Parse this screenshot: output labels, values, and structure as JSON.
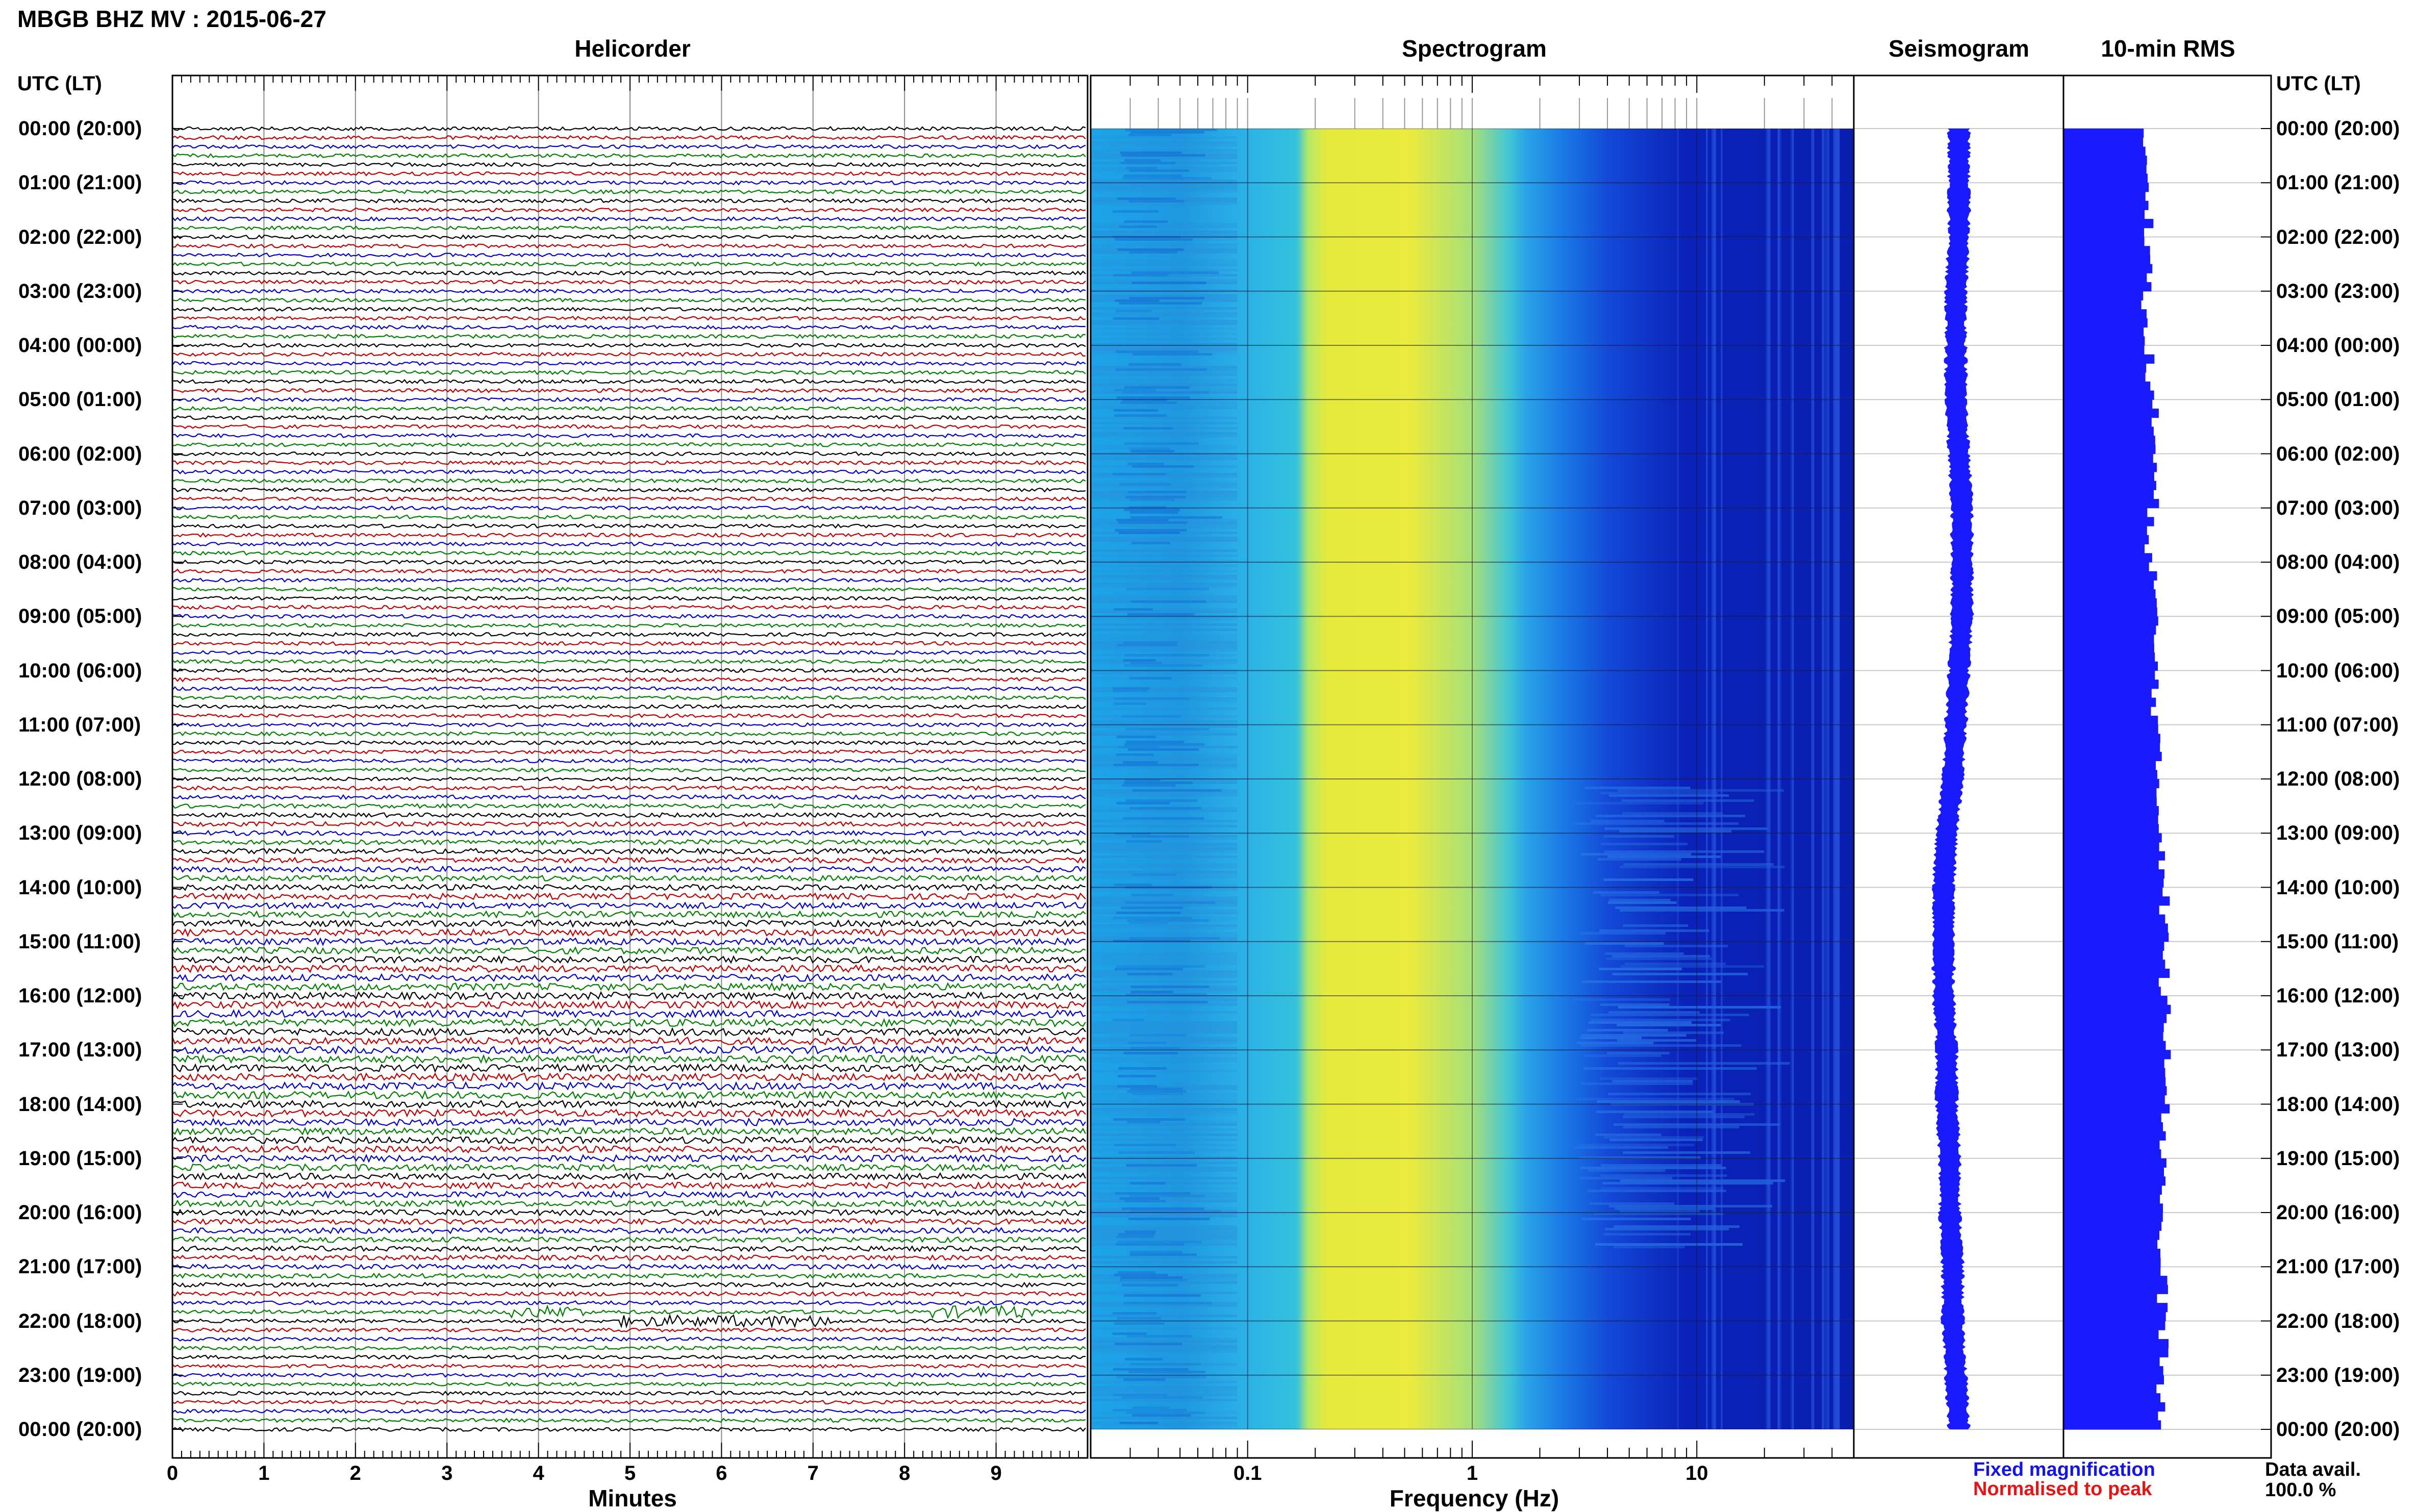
{
  "header": {
    "title": "MBGB BHZ MV : 2015-06-27",
    "utc_header": "UTC (LT)"
  },
  "panels": {
    "helicorder": "Helicorder",
    "spectrogram": "Spectrogram",
    "seismogram": "Seismogram",
    "rms": "10-min RMS"
  },
  "time_labels": [
    "00:00 (20:00)",
    "01:00 (21:00)",
    "02:00 (22:00)",
    "03:00 (23:00)",
    "04:00 (00:00)",
    "05:00 (01:00)",
    "06:00 (02:00)",
    "07:00 (03:00)",
    "08:00 (04:00)",
    "09:00 (05:00)",
    "10:00 (06:00)",
    "11:00 (07:00)",
    "12:00 (08:00)",
    "13:00 (09:00)",
    "14:00 (10:00)",
    "15:00 (11:00)",
    "16:00 (12:00)",
    "17:00 (13:00)",
    "18:00 (14:00)",
    "19:00 (15:00)",
    "20:00 (16:00)",
    "21:00 (17:00)",
    "22:00 (18:00)",
    "23:00 (19:00)",
    "00:00 (20:00)"
  ],
  "footer": {
    "minutes_label": "Minutes",
    "frequency_label": "Frequency (Hz)",
    "legend_fixed": "Fixed magnification",
    "legend_normalised": "Normalised to peak",
    "data_avail_label": "Data avail.",
    "data_avail_value": "100.0 %"
  },
  "colors": {
    "trace_cycle": [
      "#000000",
      "#c00000",
      "#0000c8",
      "#008000"
    ],
    "seismogram": "#1a1aff",
    "rms": "#1a1aff",
    "legend_blue": "#1414e6",
    "legend_red": "#e61414"
  },
  "chart_data": [
    {
      "type": "line",
      "title": "Helicorder",
      "xlabel": "Minutes",
      "x_ticks": [
        "0",
        "1",
        "2",
        "3",
        "4",
        "5",
        "6",
        "7",
        "8",
        "9"
      ],
      "xlim": [
        0,
        10
      ],
      "rows_per_hour": 6,
      "hours": 24,
      "events": [
        {
          "hour_row": 131,
          "minute": 3.7,
          "duration": 0.8
        },
        {
          "hour_row": 131,
          "minute": 8.3,
          "duration": 1.1
        },
        {
          "hour_row": 132,
          "minute": 4.9,
          "duration": 1.5
        },
        {
          "hour_row": 132,
          "minute": 6.4,
          "duration": 0.9
        }
      ]
    },
    {
      "type": "heatmap",
      "title": "Spectrogram",
      "xlabel": "Frequency (Hz)",
      "x_scale": "log",
      "xlim": [
        0.02,
        50
      ],
      "x_ticks": [
        "0.1",
        "1",
        "10"
      ],
      "x_tick_values": [
        0.1,
        1,
        10
      ],
      "band_peak_hz": [
        0.2,
        1.2
      ]
    },
    {
      "type": "line",
      "title": "Seismogram",
      "values": [
        0.0,
        0.0,
        0.0,
        -0.1,
        -0.1,
        -0.1,
        0.0,
        0.1,
        0.1,
        0.1,
        0.0,
        -0.1,
        -0.2,
        -0.4,
        -0.5,
        -0.5,
        -0.5,
        -0.4,
        -0.4,
        -0.3,
        -0.3,
        -0.2,
        -0.2,
        -0.1,
        0.0
      ]
    },
    {
      "type": "bar",
      "title": "10-min RMS",
      "orientation": "horizontal",
      "values": [
        0.8,
        0.85,
        0.85,
        0.8,
        0.85,
        0.9,
        0.9,
        0.85,
        0.9,
        0.9,
        0.92,
        0.92,
        0.95,
        1.0,
        1.0,
        1.0,
        1.05,
        1.05,
        1.0,
        1.0,
        0.95,
        0.98,
        1.0,
        0.95
      ]
    }
  ]
}
